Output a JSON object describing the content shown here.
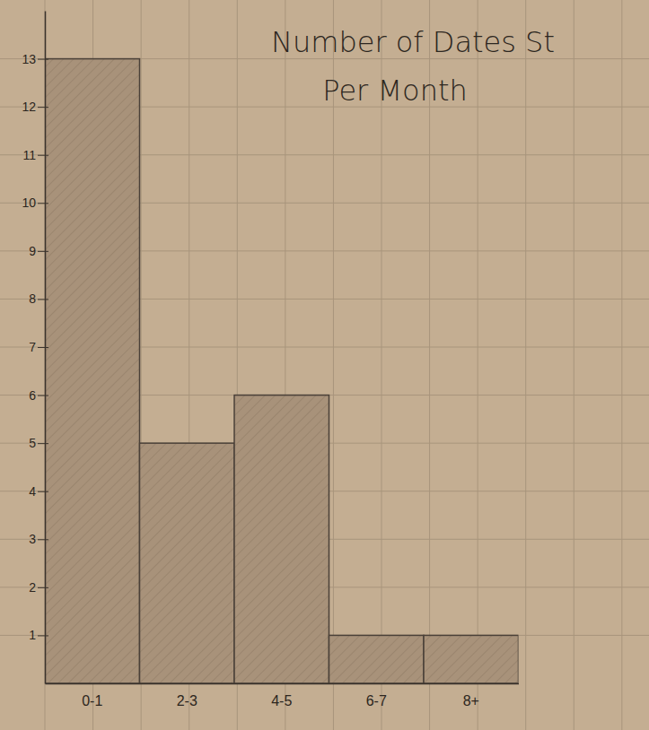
{
  "chart_data": {
    "type": "bar",
    "title": "Number of Dates St",
    "subtitle": "Per Month",
    "categories": [
      "0-1",
      "2-3",
      "4-5",
      "6-7",
      "8+"
    ],
    "values": [
      13,
      5,
      6,
      1,
      1
    ],
    "color": "#a8927a",
    "ylim": [
      0,
      14
    ],
    "yticks": [
      1,
      2,
      3,
      4,
      5,
      6,
      7,
      8,
      9,
      10,
      11,
      12,
      13
    ],
    "grid": true
  }
}
